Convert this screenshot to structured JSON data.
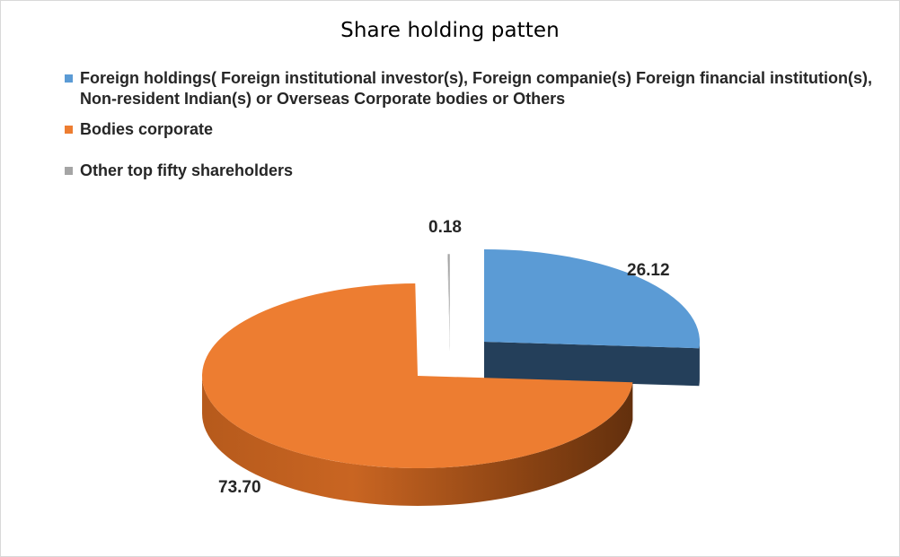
{
  "chart_data": {
    "type": "pie",
    "title": "Share holding patten",
    "categories": [
      "Foreign holdings( Foreign institutional investor(s), Foreign companie(s) Foreign financial institution(s), Non-resident Indian(s) or Overseas Corporate bodies or Others",
      "Bodies corporate",
      "Other top fifty shareholders"
    ],
    "values": [
      26.12,
      73.7,
      0.18
    ],
    "data_labels": [
      "26.12",
      "73.70",
      "0.18"
    ],
    "colors": [
      "#5B9BD5",
      "#ED7D31",
      "#A5A5A5"
    ],
    "style": "3d-exploded",
    "legend_position": "top"
  }
}
